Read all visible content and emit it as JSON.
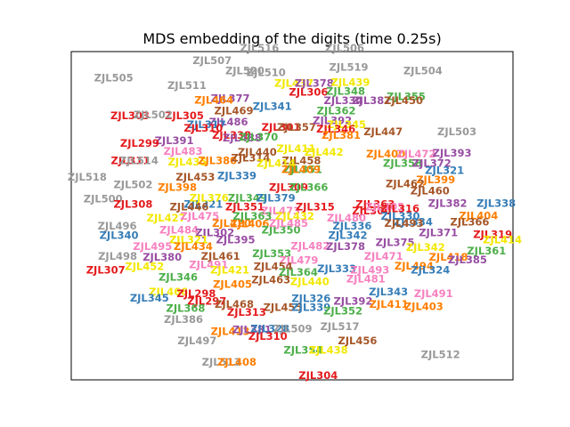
{
  "chart_data": {
    "type": "scatter",
    "title": "MDS embedding of the digits (time 0.25s)",
    "xlabel": "",
    "ylabel": "",
    "xlim": [
      0,
      100
    ],
    "ylim": [
      0,
      100
    ],
    "grid": false,
    "show_ticks": false,
    "marker": "text-label",
    "colors": {
      "gray": "#999999",
      "red": "#e41a1c",
      "orange": "#ff7f00",
      "yellow": "#f2e800",
      "green": "#4daf4a",
      "blue": "#377eb8",
      "purple": "#984ea3",
      "pink": "#f781bf",
      "brown": "#a65628"
    },
    "points": [
      {
        "label": "ZJL516",
        "x": 42.6,
        "y": 101.0,
        "color": "gray"
      },
      {
        "label": "ZJL506",
        "x": 61.9,
        "y": 101.0,
        "color": "gray"
      },
      {
        "label": "ZJL507",
        "x": 31.9,
        "y": 97.2,
        "color": "gray"
      },
      {
        "label": "ZJL519",
        "x": 62.8,
        "y": 95.1,
        "color": "gray"
      },
      {
        "label": "ZJL504",
        "x": 79.6,
        "y": 94.1,
        "color": "gray"
      },
      {
        "label": "ZJL520",
        "x": 39.3,
        "y": 94.1,
        "color": "gray"
      },
      {
        "label": "ZJL510",
        "x": 44.1,
        "y": 93.5,
        "color": "gray"
      },
      {
        "label": "ZJL505",
        "x": 9.6,
        "y": 91.9,
        "color": "gray"
      },
      {
        "label": "ZJL511",
        "x": 26.2,
        "y": 89.5,
        "color": "gray"
      },
      {
        "label": "ZJL437",
        "x": 50.4,
        "y": 90.3,
        "color": "yellow"
      },
      {
        "label": "ZJL378",
        "x": 55.0,
        "y": 90.3,
        "color": "purple"
      },
      {
        "label": "ZJL439",
        "x": 63.2,
        "y": 90.5,
        "color": "yellow"
      },
      {
        "label": "ZJL306",
        "x": 53.7,
        "y": 87.6,
        "color": "red"
      },
      {
        "label": "ZJL348",
        "x": 62.1,
        "y": 87.8,
        "color": "green"
      },
      {
        "label": "ZJL377",
        "x": 36.0,
        "y": 85.7,
        "color": "purple"
      },
      {
        "label": "ZJL464",
        "x": 32.3,
        "y": 85.1,
        "color": "orange"
      },
      {
        "label": "ZJL341",
        "x": 45.5,
        "y": 83.2,
        "color": "blue"
      },
      {
        "label": "ZJL334",
        "x": 61.6,
        "y": 84.9,
        "color": "purple"
      },
      {
        "label": "ZJL387",
        "x": 68.0,
        "y": 84.9,
        "color": "purple"
      },
      {
        "label": "ZJL355",
        "x": 75.8,
        "y": 86.2,
        "color": "green"
      },
      {
        "label": "ZJL450",
        "x": 75.2,
        "y": 84.9,
        "color": "brown"
      },
      {
        "label": "ZJL469",
        "x": 36.8,
        "y": 81.9,
        "color": "brown"
      },
      {
        "label": "ZJL362",
        "x": 60.0,
        "y": 81.9,
        "color": "green"
      },
      {
        "label": "ZJL305",
        "x": 25.6,
        "y": 80.3,
        "color": "red"
      },
      {
        "label": "ZJL303",
        "x": 13.3,
        "y": 80.3,
        "color": "red"
      },
      {
        "label": "ZJL502",
        "x": 18.5,
        "y": 80.6,
        "color": "gray"
      },
      {
        "label": "ZJL486",
        "x": 35.6,
        "y": 78.5,
        "color": "purple"
      },
      {
        "label": "ZJL317",
        "x": 30.6,
        "y": 77.6,
        "color": "blue"
      },
      {
        "label": "ZJL310",
        "x": 29.9,
        "y": 76.5,
        "color": "red"
      },
      {
        "label": "ZJL301",
        "x": 47.5,
        "y": 76.8,
        "color": "red"
      },
      {
        "label": "ZJL357",
        "x": 51.0,
        "y": 76.8,
        "color": "brown"
      },
      {
        "label": "ZJL392",
        "x": 59.1,
        "y": 78.9,
        "color": "purple"
      },
      {
        "label": "ZJL345",
        "x": 62.3,
        "y": 77.6,
        "color": "yellow"
      },
      {
        "label": "ZJL346",
        "x": 59.9,
        "y": 76.3,
        "color": "red"
      },
      {
        "label": "ZJL381",
        "x": 61.1,
        "y": 74.4,
        "color": "orange"
      },
      {
        "label": "ZJL447",
        "x": 70.6,
        "y": 75.5,
        "color": "brown"
      },
      {
        "label": "ZJL503",
        "x": 87.3,
        "y": 75.5,
        "color": "gray"
      },
      {
        "label": "ZJL338",
        "x": 36.3,
        "y": 74.4,
        "color": "red"
      },
      {
        "label": "ZJL488",
        "x": 38.7,
        "y": 73.6,
        "color": "purple"
      },
      {
        "label": "ZJL370",
        "x": 42.4,
        "y": 73.9,
        "color": "green"
      },
      {
        "label": "ZJL391",
        "x": 23.3,
        "y": 72.8,
        "color": "purple"
      },
      {
        "label": "ZJL299",
        "x": 15.5,
        "y": 71.9,
        "color": "red"
      },
      {
        "label": "ZJL483",
        "x": 25.3,
        "y": 69.5,
        "color": "pink"
      },
      {
        "label": "ZJL440",
        "x": 42.1,
        "y": 69.2,
        "color": "brown"
      },
      {
        "label": "ZJL411",
        "x": 50.9,
        "y": 70.3,
        "color": "yellow"
      },
      {
        "label": "ZJL442",
        "x": 57.2,
        "y": 69.2,
        "color": "yellow"
      },
      {
        "label": "ZJL400",
        "x": 71.2,
        "y": 68.7,
        "color": "orange"
      },
      {
        "label": "ZJL472",
        "x": 78.1,
        "y": 68.7,
        "color": "pink"
      },
      {
        "label": "ZJL393",
        "x": 86.2,
        "y": 69.0,
        "color": "purple"
      },
      {
        "label": "ZJL311",
        "x": 13.4,
        "y": 66.7,
        "color": "red"
      },
      {
        "label": "ZJL514",
        "x": 15.3,
        "y": 66.7,
        "color": "gray"
      },
      {
        "label": "ZJL435",
        "x": 26.3,
        "y": 66.2,
        "color": "yellow"
      },
      {
        "label": "ZJL380",
        "x": 33.1,
        "y": 66.7,
        "color": "orange"
      },
      {
        "label": "ZJL314",
        "x": 40.6,
        "y": 67.5,
        "color": "brown"
      },
      {
        "label": "ZJL458",
        "x": 52.1,
        "y": 66.7,
        "color": "brown"
      },
      {
        "label": "ZJL351",
        "x": 52.4,
        "y": 64.0,
        "color": "green"
      },
      {
        "label": "ZJL414",
        "x": 46.4,
        "y": 65.8,
        "color": "yellow"
      },
      {
        "label": "ZJL409",
        "x": 52.0,
        "y": 64.0,
        "color": "orange"
      },
      {
        "label": "ZJL358",
        "x": 75.0,
        "y": 65.9,
        "color": "green"
      },
      {
        "label": "ZJL372",
        "x": 81.6,
        "y": 65.9,
        "color": "purple"
      },
      {
        "label": "ZJL321",
        "x": 84.5,
        "y": 63.7,
        "color": "blue"
      },
      {
        "label": "ZJL518",
        "x": 3.6,
        "y": 61.7,
        "color": "gray"
      },
      {
        "label": "ZJL453",
        "x": 28.1,
        "y": 61.7,
        "color": "brown"
      },
      {
        "label": "ZJL339",
        "x": 37.5,
        "y": 62.1,
        "color": "blue"
      },
      {
        "label": "ZJL399",
        "x": 82.5,
        "y": 60.9,
        "color": "orange"
      },
      {
        "label": "ZJL502",
        "x": 14.0,
        "y": 59.3,
        "color": "gray"
      },
      {
        "label": "ZJL398",
        "x": 24.0,
        "y": 58.5,
        "color": "orange"
      },
      {
        "label": "ZJL309",
        "x": 49.2,
        "y": 58.5,
        "color": "red"
      },
      {
        "label": "ZJL366",
        "x": 53.7,
        "y": 58.5,
        "color": "green"
      },
      {
        "label": "ZJL462",
        "x": 75.6,
        "y": 59.6,
        "color": "brown"
      },
      {
        "label": "ZJL460",
        "x": 81.2,
        "y": 57.4,
        "color": "brown"
      },
      {
        "label": "ZJL500",
        "x": 7.2,
        "y": 55.0,
        "color": "gray"
      },
      {
        "label": "ZJL308",
        "x": 14.0,
        "y": 53.4,
        "color": "red"
      },
      {
        "label": "ZJL321",
        "x": 29.9,
        "y": 53.4,
        "color": "blue"
      },
      {
        "label": "ZJL376",
        "x": 31.2,
        "y": 55.3,
        "color": "yellow"
      },
      {
        "label": "ZJL349",
        "x": 39.9,
        "y": 55.3,
        "color": "green"
      },
      {
        "label": "ZJL379",
        "x": 46.3,
        "y": 55.3,
        "color": "blue"
      },
      {
        "label": "ZJL363",
        "x": 68.8,
        "y": 53.4,
        "color": "red"
      },
      {
        "label": "ZJL382",
        "x": 85.2,
        "y": 53.7,
        "color": "purple"
      },
      {
        "label": "ZJL338",
        "x": 96.2,
        "y": 53.7,
        "color": "blue"
      },
      {
        "label": "ZJL446",
        "x": 26.7,
        "y": 52.6,
        "color": "brown"
      },
      {
        "label": "ZJL351",
        "x": 39.3,
        "y": 52.6,
        "color": "red"
      },
      {
        "label": "ZJL473",
        "x": 47.4,
        "y": 51.3,
        "color": "pink"
      },
      {
        "label": "ZJL315",
        "x": 55.2,
        "y": 52.6,
        "color": "red"
      },
      {
        "label": "ZJL300",
        "x": 68.0,
        "y": 51.3,
        "color": "red"
      },
      {
        "label": "ZJL405",
        "x": 71.0,
        "y": 52.6,
        "color": "pink"
      },
      {
        "label": "ZJL316",
        "x": 74.4,
        "y": 52.1,
        "color": "red"
      },
      {
        "label": "ZJL404",
        "x": 92.2,
        "y": 49.9,
        "color": "orange"
      },
      {
        "label": "ZJL496",
        "x": 10.4,
        "y": 46.8,
        "color": "gray"
      },
      {
        "label": "ZJL427",
        "x": 21.5,
        "y": 49.2,
        "color": "yellow"
      },
      {
        "label": "ZJL475",
        "x": 29.1,
        "y": 49.7,
        "color": "pink"
      },
      {
        "label": "ZJL420",
        "x": 36.3,
        "y": 47.6,
        "color": "orange"
      },
      {
        "label": "ZJL363",
        "x": 41.0,
        "y": 49.7,
        "color": "green"
      },
      {
        "label": "ZJL406",
        "x": 40.4,
        "y": 47.4,
        "color": "orange"
      },
      {
        "label": "ZJL432",
        "x": 50.6,
        "y": 49.7,
        "color": "yellow"
      },
      {
        "label": "ZJL480",
        "x": 62.3,
        "y": 49.2,
        "color": "pink"
      },
      {
        "label": "ZJL330",
        "x": 74.5,
        "y": 49.7,
        "color": "blue"
      },
      {
        "label": "ZJL334",
        "x": 77.4,
        "y": 47.9,
        "color": "blue"
      },
      {
        "label": "ZJL366",
        "x": 90.2,
        "y": 47.9,
        "color": "brown"
      },
      {
        "label": "ZJL350",
        "x": 47.5,
        "y": 45.5,
        "color": "green"
      },
      {
        "label": "ZJL484",
        "x": 24.4,
        "y": 45.5,
        "color": "pink"
      },
      {
        "label": "ZJL302",
        "x": 32.5,
        "y": 44.7,
        "color": "purple"
      },
      {
        "label": "ZJL485",
        "x": 49.2,
        "y": 47.6,
        "color": "pink"
      },
      {
        "label": "ZJL336",
        "x": 63.6,
        "y": 46.8,
        "color": "blue"
      },
      {
        "label": "ZJL493",
        "x": 75.3,
        "y": 47.6,
        "color": "brown"
      },
      {
        "label": "ZJL371",
        "x": 83.1,
        "y": 44.7,
        "color": "purple"
      },
      {
        "label": "ZJL319",
        "x": 95.4,
        "y": 44.2,
        "color": "red"
      },
      {
        "label": "ZJL340",
        "x": 10.8,
        "y": 43.9,
        "color": "blue"
      },
      {
        "label": "ZJL321",
        "x": 26.6,
        "y": 42.6,
        "color": "yellow"
      },
      {
        "label": "ZJL395",
        "x": 37.2,
        "y": 42.6,
        "color": "purple"
      },
      {
        "label": "ZJL342",
        "x": 62.6,
        "y": 43.9,
        "color": "blue"
      },
      {
        "label": "ZJL375",
        "x": 73.3,
        "y": 41.8,
        "color": "purple"
      },
      {
        "label": "ZJL342",
        "x": 80.2,
        "y": 40.2,
        "color": "yellow"
      },
      {
        "label": "ZJL414",
        "x": 97.6,
        "y": 42.6,
        "color": "yellow"
      },
      {
        "label": "ZJL361",
        "x": 94.0,
        "y": 39.2,
        "color": "green"
      },
      {
        "label": "ZJL495",
        "x": 18.4,
        "y": 40.5,
        "color": "pink"
      },
      {
        "label": "ZJL434",
        "x": 27.6,
        "y": 40.5,
        "color": "orange"
      },
      {
        "label": "ZJL482",
        "x": 54.1,
        "y": 40.7,
        "color": "pink"
      },
      {
        "label": "ZJL378",
        "x": 62.1,
        "y": 40.5,
        "color": "purple"
      },
      {
        "label": "ZJL498",
        "x": 10.5,
        "y": 37.6,
        "color": "gray"
      },
      {
        "label": "ZJL380",
        "x": 20.6,
        "y": 37.3,
        "color": "purple"
      },
      {
        "label": "ZJL461",
        "x": 33.8,
        "y": 37.6,
        "color": "brown"
      },
      {
        "label": "ZJL353",
        "x": 45.4,
        "y": 38.4,
        "color": "green"
      },
      {
        "label": "ZJL471",
        "x": 70.7,
        "y": 37.6,
        "color": "pink"
      },
      {
        "label": "ZJL418",
        "x": 85.4,
        "y": 37.3,
        "color": "orange"
      },
      {
        "label": "ZJL385",
        "x": 89.7,
        "y": 36.5,
        "color": "purple"
      },
      {
        "label": "ZJL307",
        "x": 7.8,
        "y": 33.4,
        "color": "red"
      },
      {
        "label": "ZJL452",
        "x": 16.6,
        "y": 34.4,
        "color": "yellow"
      },
      {
        "label": "ZJL491",
        "x": 31.1,
        "y": 34.9,
        "color": "pink"
      },
      {
        "label": "ZJL479",
        "x": 51.5,
        "y": 36.3,
        "color": "pink"
      },
      {
        "label": "ZJL333",
        "x": 60.1,
        "y": 33.8,
        "color": "blue"
      },
      {
        "label": "ZJL493",
        "x": 67.6,
        "y": 33.4,
        "color": "pink"
      },
      {
        "label": "ZJL494",
        "x": 77.6,
        "y": 34.6,
        "color": "orange"
      },
      {
        "label": "ZJL324",
        "x": 81.3,
        "y": 33.4,
        "color": "blue"
      },
      {
        "label": "ZJL421",
        "x": 35.9,
        "y": 33.3,
        "color": "yellow"
      },
      {
        "label": "ZJL454",
        "x": 45.7,
        "y": 34.4,
        "color": "brown"
      },
      {
        "label": "ZJL364",
        "x": 51.4,
        "y": 32.7,
        "color": "green"
      },
      {
        "label": "ZJL346",
        "x": 24.2,
        "y": 31.1,
        "color": "green"
      },
      {
        "label": "ZJL463",
        "x": 45.2,
        "y": 30.4,
        "color": "brown"
      },
      {
        "label": "ZJL440",
        "x": 54.0,
        "y": 29.8,
        "color": "yellow"
      },
      {
        "label": "ZJL481",
        "x": 66.7,
        "y": 30.6,
        "color": "pink"
      },
      {
        "label": "ZJL405",
        "x": 36.5,
        "y": 29.0,
        "color": "orange"
      },
      {
        "label": "ZJL343",
        "x": 71.8,
        "y": 26.7,
        "color": "blue"
      },
      {
        "label": "ZJL491",
        "x": 82.0,
        "y": 26.2,
        "color": "pink"
      },
      {
        "label": "ZJL466",
        "x": 22.0,
        "y": 26.7,
        "color": "yellow"
      },
      {
        "label": "ZJL298",
        "x": 28.3,
        "y": 26.2,
        "color": "red"
      },
      {
        "label": "ZJL345",
        "x": 17.7,
        "y": 24.8,
        "color": "blue"
      },
      {
        "label": "ZJL297",
        "x": 30.7,
        "y": 23.8,
        "color": "red"
      },
      {
        "label": "ZJL468",
        "x": 36.9,
        "y": 22.9,
        "color": "brown"
      },
      {
        "label": "ZJL326",
        "x": 54.3,
        "y": 24.6,
        "color": "blue"
      },
      {
        "label": "ZJL392",
        "x": 63.8,
        "y": 23.8,
        "color": "purple"
      },
      {
        "label": "ZJL411",
        "x": 71.9,
        "y": 22.9,
        "color": "orange"
      },
      {
        "label": "ZJL403",
        "x": 79.8,
        "y": 22.2,
        "color": "orange"
      },
      {
        "label": "ZJL368",
        "x": 25.9,
        "y": 21.7,
        "color": "green"
      },
      {
        "label": "ZJL455",
        "x": 47.9,
        "y": 21.9,
        "color": "brown"
      },
      {
        "label": "ZJL339",
        "x": 54.3,
        "y": 21.9,
        "color": "blue"
      },
      {
        "label": "ZJL352",
        "x": 61.5,
        "y": 20.9,
        "color": "green"
      },
      {
        "label": "ZJL313",
        "x": 39.7,
        "y": 20.4,
        "color": "red"
      },
      {
        "label": "ZJL386",
        "x": 25.4,
        "y": 18.3,
        "color": "gray"
      },
      {
        "label": "ZJL517",
        "x": 60.8,
        "y": 16.1,
        "color": "gray"
      },
      {
        "label": "ZJL413",
        "x": 36.0,
        "y": 14.7,
        "color": "orange"
      },
      {
        "label": "ZJL381",
        "x": 40.9,
        "y": 15.2,
        "color": "purple"
      },
      {
        "label": "ZJL328",
        "x": 45.0,
        "y": 15.5,
        "color": "blue"
      },
      {
        "label": "ZJL509",
        "x": 50.1,
        "y": 15.5,
        "color": "gray"
      },
      {
        "label": "ZJL310",
        "x": 44.5,
        "y": 13.2,
        "color": "red"
      },
      {
        "label": "ZJL497",
        "x": 28.5,
        "y": 11.8,
        "color": "gray"
      },
      {
        "label": "ZJL456",
        "x": 64.8,
        "y": 11.8,
        "color": "brown"
      },
      {
        "label": "ZJL354",
        "x": 52.5,
        "y": 8.9,
        "color": "green"
      },
      {
        "label": "ZJL438",
        "x": 58.2,
        "y": 8.9,
        "color": "yellow"
      },
      {
        "label": "ZJL512",
        "x": 83.6,
        "y": 7.6,
        "color": "gray"
      },
      {
        "label": "ZJL513",
        "x": 34.0,
        "y": 5.3,
        "color": "gray"
      },
      {
        "label": "ZJL408",
        "x": 37.5,
        "y": 5.3,
        "color": "orange"
      },
      {
        "label": "ZJL304",
        "x": 55.9,
        "y": 1.2,
        "color": "red"
      }
    ]
  }
}
